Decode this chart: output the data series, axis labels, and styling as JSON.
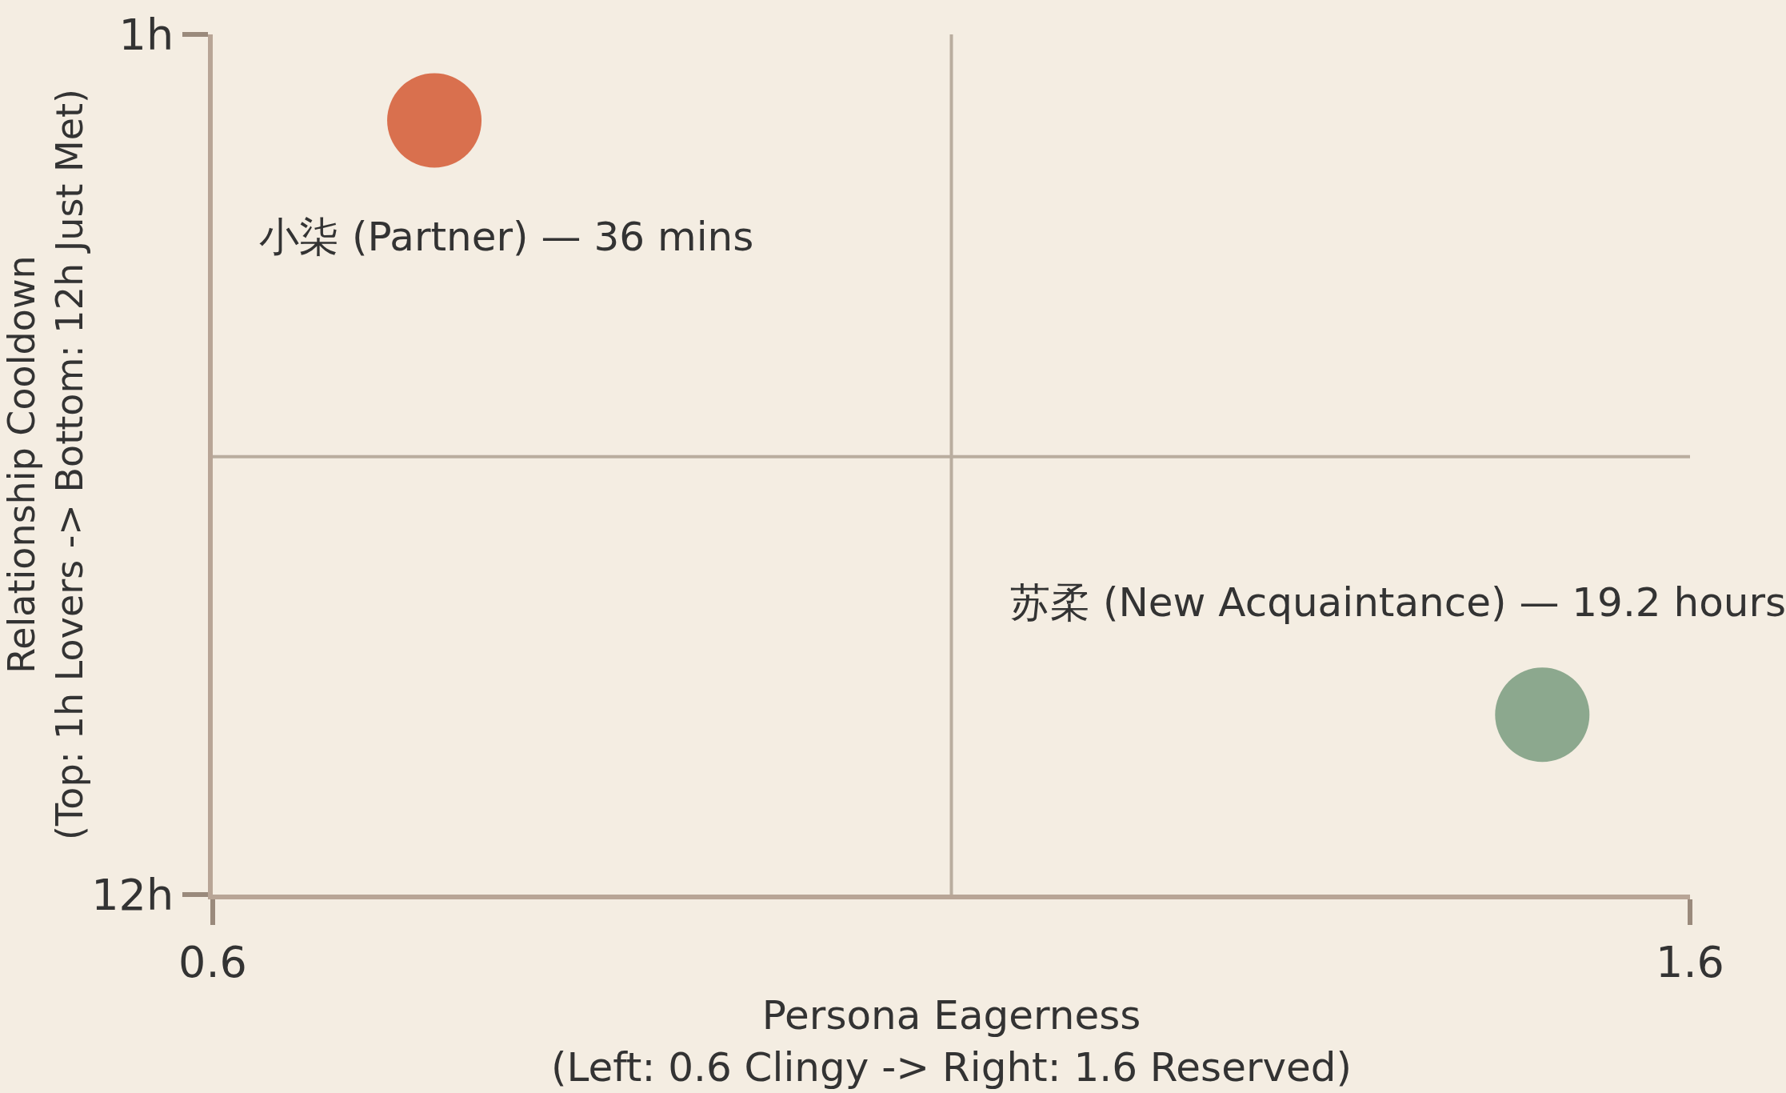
{
  "chart_data": {
    "type": "scatter",
    "xlabel": "Persona Eagerness\n(Left: 0.6 Clingy -> Right: 1.6 Reserved)",
    "ylabel": "Relationship Cooldown\n(Top: 1h Lovers -> Bottom: 12h Just Met)",
    "x": [
      0.75,
      1.5
    ],
    "values": [
      2.1,
      9.7
    ],
    "colors": [
      "#d9704e",
      "#8ca88e"
    ],
    "marker": "circle",
    "xlim": [
      0.6,
      1.6
    ],
    "xticks": [
      0.6,
      1.6
    ],
    "ylim": [
      12,
      1
    ],
    "yticks": [
      {
        "value": 1,
        "label": "1h"
      },
      {
        "value": 12,
        "label": "12h"
      }
    ],
    "ref_lines": [
      {
        "axis": "x",
        "value": 1.1,
        "color": "#b9ad9f"
      },
      {
        "axis": "y",
        "value": 6.4,
        "color": "#b9ad9f"
      }
    ],
    "annotations": [
      "小柒 (Partner) — 36 mins",
      "苏柔 (New Acquaintance) — 19.2 hours"
    ]
  }
}
